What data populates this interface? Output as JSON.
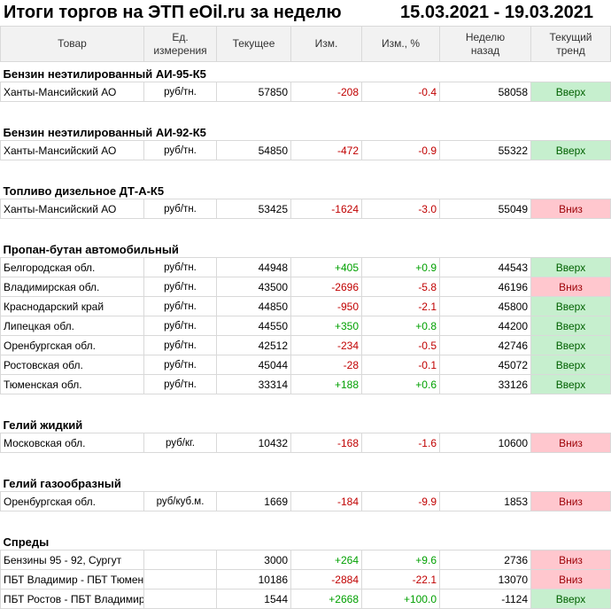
{
  "title": {
    "left": "Итоги торгов на ЭТП eOil.ru за неделю",
    "right": "15.03.2021 - 19.03.2021"
  },
  "headers": {
    "product": "Товар",
    "unit_line1": "Ед.",
    "unit_line2": "измерения",
    "current": "Текущее",
    "change": "Изм.",
    "change_pct": "Изм., %",
    "week_ago_line1": "Неделю",
    "week_ago_line2": "назад",
    "trend_line1": "Текущий",
    "trend_line2": "тренд"
  },
  "colors": {
    "up_bg": "#c6efce",
    "down_bg": "#ffc7ce",
    "negative": "#c00000",
    "positive": "#00a000"
  },
  "sections": [
    {
      "title": "Бензин неэтилированный АИ-95-К5",
      "rows": [
        {
          "name": "Ханты-Мансийский АО",
          "unit": "руб/тн.",
          "current": "57850",
          "change": "-208",
          "change_pct": "-0.4",
          "week_ago": "58058",
          "trend": "Вверх",
          "dir": "up",
          "sign": "neg"
        }
      ]
    },
    {
      "title": "Бензин неэтилированный АИ-92-К5",
      "rows": [
        {
          "name": "Ханты-Мансийский АО",
          "unit": "руб/тн.",
          "current": "54850",
          "change": "-472",
          "change_pct": "-0.9",
          "week_ago": "55322",
          "trend": "Вверх",
          "dir": "up",
          "sign": "neg"
        }
      ]
    },
    {
      "title": "Топливо дизельное ДТ-А-К5",
      "rows": [
        {
          "name": "Ханты-Мансийский АО",
          "unit": "руб/тн.",
          "current": "53425",
          "change": "-1624",
          "change_pct": "-3.0",
          "week_ago": "55049",
          "trend": "Вниз",
          "dir": "down",
          "sign": "neg"
        }
      ]
    },
    {
      "title": "Пропан-бутан автомобильный",
      "rows": [
        {
          "name": "Белгородская обл.",
          "unit": "руб/тн.",
          "current": "44948",
          "change": "+405",
          "change_pct": "+0.9",
          "week_ago": "44543",
          "trend": "Вверх",
          "dir": "up",
          "sign": "pos"
        },
        {
          "name": "Владимирская обл.",
          "unit": "руб/тн.",
          "current": "43500",
          "change": "-2696",
          "change_pct": "-5.8",
          "week_ago": "46196",
          "trend": "Вниз",
          "dir": "down",
          "sign": "neg"
        },
        {
          "name": "Краснодарский край",
          "unit": "руб/тн.",
          "current": "44850",
          "change": "-950",
          "change_pct": "-2.1",
          "week_ago": "45800",
          "trend": "Вверх",
          "dir": "up",
          "sign": "neg"
        },
        {
          "name": "Липецкая обл.",
          "unit": "руб/тн.",
          "current": "44550",
          "change": "+350",
          "change_pct": "+0.8",
          "week_ago": "44200",
          "trend": "Вверх",
          "dir": "up",
          "sign": "pos"
        },
        {
          "name": "Оренбургская обл.",
          "unit": "руб/тн.",
          "current": "42512",
          "change": "-234",
          "change_pct": "-0.5",
          "week_ago": "42746",
          "trend": "Вверх",
          "dir": "up",
          "sign": "neg"
        },
        {
          "name": "Ростовская обл.",
          "unit": "руб/тн.",
          "current": "45044",
          "change": "-28",
          "change_pct": "-0.1",
          "week_ago": "45072",
          "trend": "Вверх",
          "dir": "up",
          "sign": "neg"
        },
        {
          "name": "Тюменская обл.",
          "unit": "руб/тн.",
          "current": "33314",
          "change": "+188",
          "change_pct": "+0.6",
          "week_ago": "33126",
          "trend": "Вверх",
          "dir": "up",
          "sign": "pos"
        }
      ]
    },
    {
      "title": "Гелий жидкий",
      "rows": [
        {
          "name": "Московская обл.",
          "unit": "руб/кг.",
          "current": "10432",
          "change": "-168",
          "change_pct": "-1.6",
          "week_ago": "10600",
          "trend": "Вниз",
          "dir": "down",
          "sign": "neg"
        }
      ]
    },
    {
      "title": "Гелий газообразный",
      "rows": [
        {
          "name": "Оренбургская обл.",
          "unit": "руб/куб.м.",
          "current": "1669",
          "change": "-184",
          "change_pct": "-9.9",
          "week_ago": "1853",
          "trend": "Вниз",
          "dir": "down",
          "sign": "neg"
        }
      ]
    },
    {
      "title": "Спреды",
      "rows": [
        {
          "name": "Бензины 95 - 92, Сургут",
          "unit": "",
          "current": "3000",
          "change": "+264",
          "change_pct": "+9.6",
          "week_ago": "2736",
          "trend": "Вниз",
          "dir": "down",
          "sign": "pos"
        },
        {
          "name": "ПБТ Владимир - ПБТ Тюмень",
          "unit": "",
          "current": "10186",
          "change": "-2884",
          "change_pct": "-22.1",
          "week_ago": "13070",
          "trend": "Вниз",
          "dir": "down",
          "sign": "neg"
        },
        {
          "name": "ПБТ Ростов - ПБТ Владимир",
          "unit": "",
          "current": "1544",
          "change": "+2668",
          "change_pct": "+100.0",
          "week_ago": "-1124",
          "trend": "Вверх",
          "dir": "up",
          "sign": "pos"
        }
      ]
    }
  ]
}
